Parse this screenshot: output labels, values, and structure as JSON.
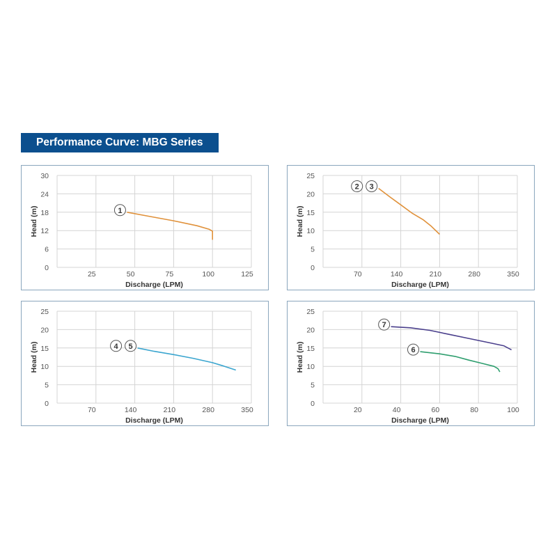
{
  "header": {
    "title": "Performance Curve: MBG Series"
  },
  "chart_data": [
    {
      "type": "line",
      "xlabel": "Discharge (LPM)",
      "ylabel": "Head (m)",
      "xlim": [
        0,
        125
      ],
      "ylim": [
        0,
        30
      ],
      "xticks": [
        25,
        50,
        75,
        100,
        125
      ],
      "yticks": [
        0,
        6,
        12,
        18,
        24,
        30
      ],
      "grid": true,
      "series": [
        {
          "markers": [
            "1"
          ],
          "color": "#e0913a",
          "points": [
            [
              45,
              18
            ],
            [
              60,
              16.6
            ],
            [
              75,
              15.2
            ],
            [
              90,
              13.6
            ],
            [
              98,
              12.4
            ],
            [
              100,
              11.8
            ],
            [
              100,
              9
            ]
          ]
        }
      ]
    },
    {
      "type": "line",
      "xlabel": "Discharge (LPM)",
      "ylabel": "Head (m)",
      "xlim": [
        0,
        350
      ],
      "ylim": [
        0,
        25
      ],
      "xticks": [
        70,
        140,
        210,
        280,
        350
      ],
      "yticks": [
        0,
        5,
        10,
        15,
        20,
        25
      ],
      "grid": true,
      "series": [
        {
          "markers": [
            "2",
            "3"
          ],
          "color": "#e0913a",
          "points": [
            [
              100,
              21.5
            ],
            [
              120,
              19.2
            ],
            [
              140,
              17
            ],
            [
              160,
              14.8
            ],
            [
              180,
              13
            ],
            [
              195,
              11.2
            ],
            [
              210,
              9
            ]
          ]
        }
      ]
    },
    {
      "type": "line",
      "xlabel": "Discharge (LPM)",
      "ylabel": "Head (m)",
      "xlim": [
        0,
        350
      ],
      "ylim": [
        0,
        25
      ],
      "xticks": [
        70,
        140,
        210,
        280,
        350
      ],
      "yticks": [
        0,
        5,
        10,
        15,
        20,
        25
      ],
      "grid": true,
      "series": [
        {
          "markers": [
            "4",
            "5"
          ],
          "color": "#3aa5cf",
          "points": [
            [
              145,
              15
            ],
            [
              175,
              14.1
            ],
            [
              210,
              13.2
            ],
            [
              245,
              12.2
            ],
            [
              280,
              11
            ],
            [
              300,
              10.1
            ],
            [
              322,
              9
            ]
          ]
        }
      ]
    },
    {
      "type": "line",
      "xlabel": "Discharge (LPM)",
      "ylabel": "Head (m)",
      "xlim": [
        0,
        100
      ],
      "ylim": [
        0,
        25
      ],
      "xticks": [
        20,
        40,
        60,
        80,
        100
      ],
      "yticks": [
        0,
        5,
        10,
        15,
        20,
        25
      ],
      "grid": true,
      "series": [
        {
          "markers": [
            "7"
          ],
          "color": "#4a3f8c",
          "points": [
            [
              35,
              20.8
            ],
            [
              45,
              20.5
            ],
            [
              55,
              19.8
            ],
            [
              65,
              18.7
            ],
            [
              75,
              17.6
            ],
            [
              85,
              16.5
            ],
            [
              93,
              15.6
            ],
            [
              97,
              14.5
            ]
          ]
        },
        {
          "markers": [
            "6"
          ],
          "color": "#2e9e6e",
          "points": [
            [
              50,
              14
            ],
            [
              60,
              13.4
            ],
            [
              68,
              12.7
            ],
            [
              75,
              11.7
            ],
            [
              82,
              10.8
            ],
            [
              88,
              10
            ],
            [
              90,
              9.4
            ],
            [
              91,
              8.5
            ]
          ]
        }
      ]
    }
  ]
}
